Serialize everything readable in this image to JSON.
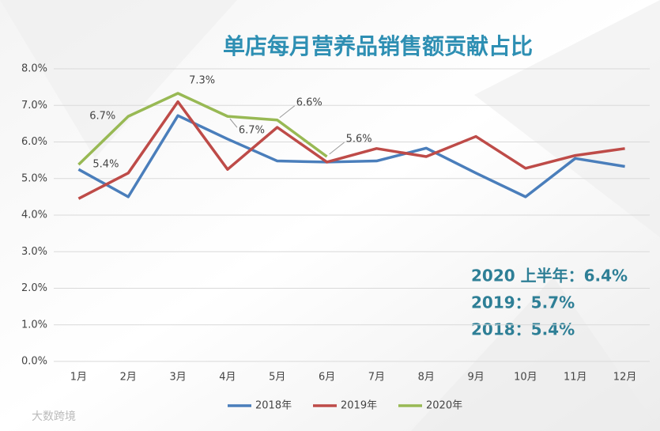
{
  "chart_data": {
    "type": "line",
    "title": "单店每月营养品销售额贡献占比",
    "categories": [
      "1月",
      "2月",
      "3月",
      "4月",
      "5月",
      "6月",
      "7月",
      "8月",
      "9月",
      "10月",
      "11月",
      "12月"
    ],
    "series": [
      {
        "name": "2018年",
        "color": "#4a7ebb",
        "values": [
          5.25,
          4.5,
          6.72,
          6.08,
          5.48,
          5.45,
          5.48,
          5.83,
          5.15,
          4.5,
          5.55,
          5.33
        ]
      },
      {
        "name": "2019年",
        "color": "#be4b48",
        "values": [
          4.45,
          5.15,
          7.1,
          5.25,
          6.4,
          5.45,
          5.82,
          5.6,
          6.15,
          5.28,
          5.63,
          5.82
        ]
      },
      {
        "name": "2020年",
        "color": "#98b954",
        "values": [
          5.38,
          6.7,
          7.33,
          6.7,
          6.6,
          5.6,
          null,
          null,
          null,
          null,
          null,
          null
        ],
        "value_labels": [
          "5.4%",
          "6.7%",
          "7.3%",
          "6.7%",
          "6.6%",
          "5.6%",
          null,
          null,
          null,
          null,
          null,
          null
        ]
      }
    ],
    "ylim": [
      0,
      8
    ],
    "yticks": [
      {
        "value": 0,
        "label": "0.0%"
      },
      {
        "value": 1,
        "label": "1.0%"
      },
      {
        "value": 2,
        "label": "2.0%"
      },
      {
        "value": 3,
        "label": "3.0%"
      },
      {
        "value": 4,
        "label": "4.0%"
      },
      {
        "value": 5,
        "label": "5.0%"
      },
      {
        "value": 6,
        "label": "6.0%"
      },
      {
        "value": 7,
        "label": "7.0%"
      },
      {
        "value": 8,
        "label": "8.0%"
      }
    ],
    "grid": true,
    "legend": "bottom",
    "annotations": [
      "2020 上半年：6.4%",
      "2019：5.7%",
      "2018：5.4%"
    ],
    "watermark": "大数跨境"
  }
}
